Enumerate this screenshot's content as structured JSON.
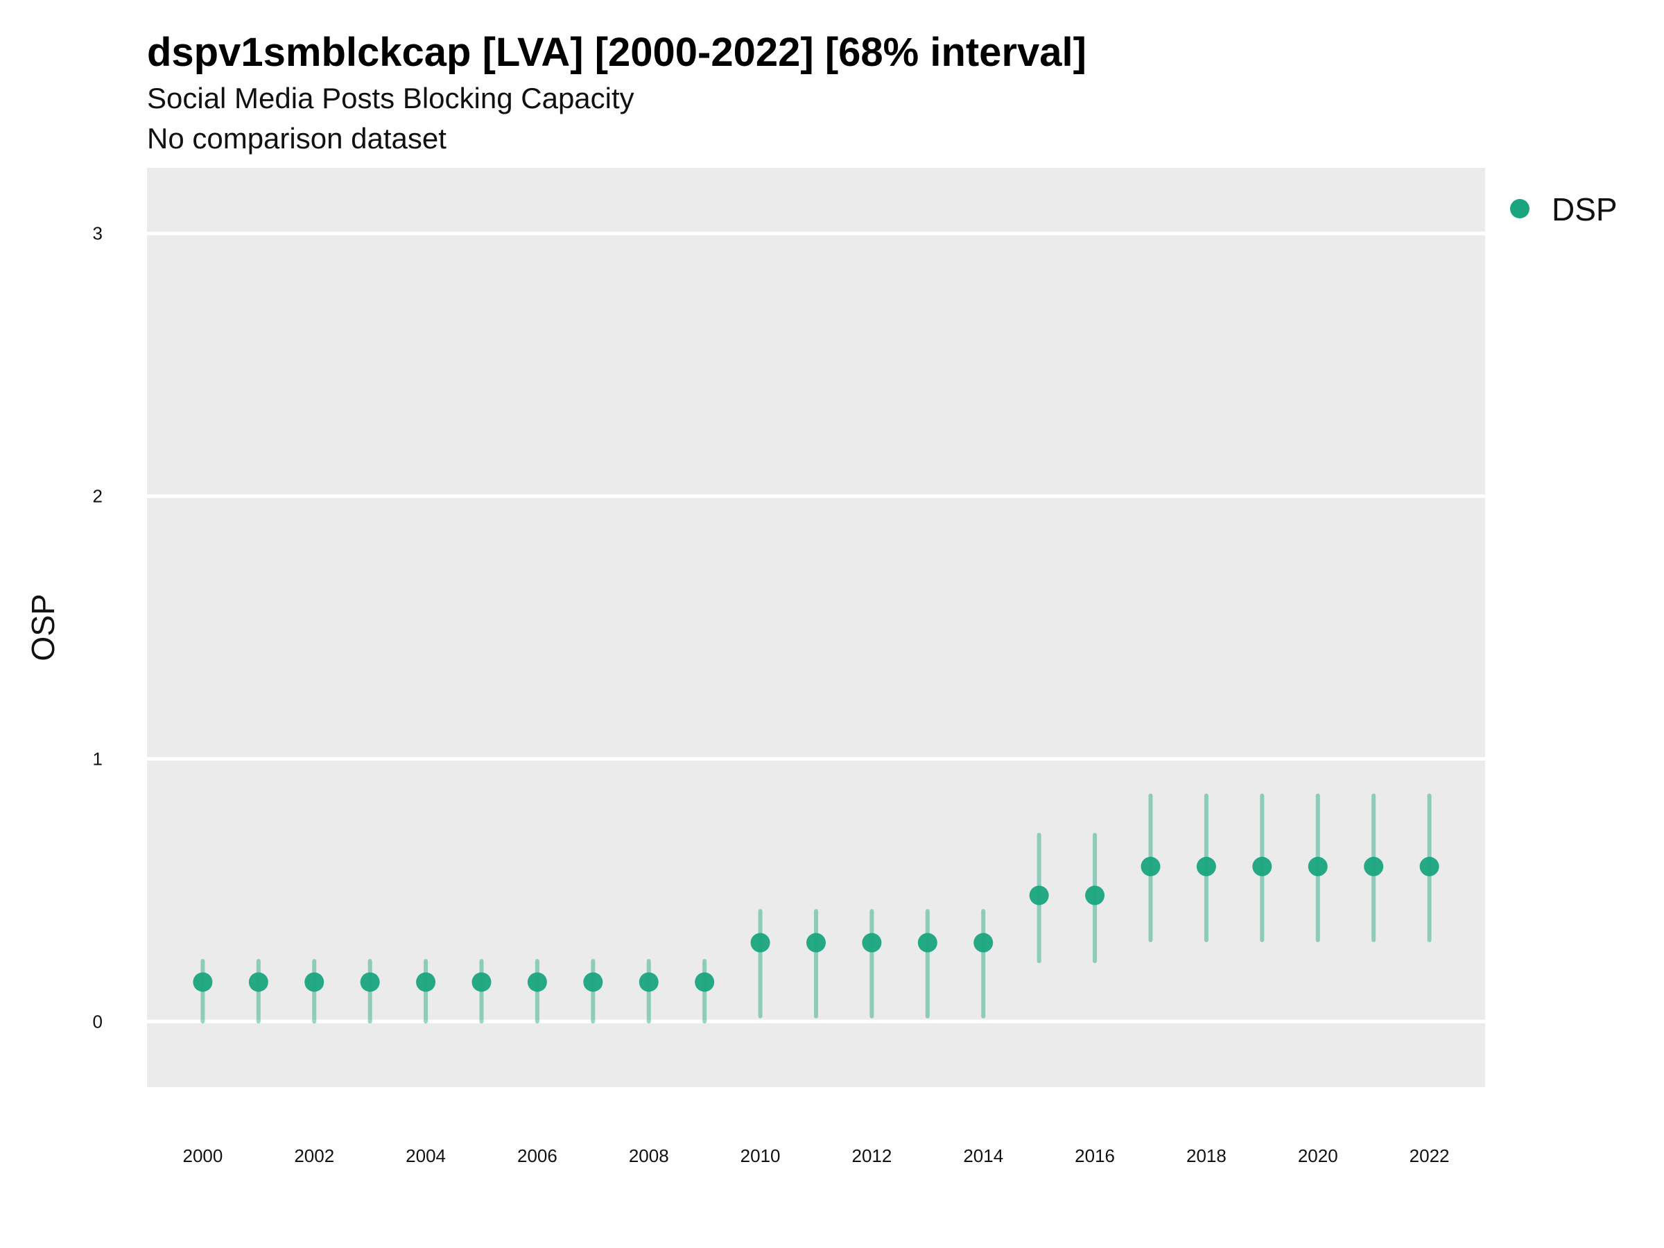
{
  "title": "dspv1smblckcap [LVA] [2000-2022] [68% interval]",
  "subtitle": "Social Media Posts Blocking Capacity",
  "caption": "No comparison dataset",
  "chart_data": {
    "type": "scatter",
    "ylabel": "OSP",
    "xlabel": "",
    "ylim": [
      -0.25,
      3.25
    ],
    "xlim": [
      1999,
      2023
    ],
    "y_ticks": [
      0,
      1,
      2,
      3
    ],
    "x_ticks": [
      2000,
      2002,
      2004,
      2006,
      2008,
      2010,
      2012,
      2014,
      2016,
      2018,
      2020,
      2022
    ],
    "grid": true,
    "legend_position": "right",
    "series": [
      {
        "name": "DSP",
        "color": "#1aa57f",
        "x": [
          2000,
          2001,
          2002,
          2003,
          2004,
          2005,
          2006,
          2007,
          2008,
          2009,
          2010,
          2011,
          2012,
          2013,
          2014,
          2015,
          2016,
          2017,
          2018,
          2019,
          2020,
          2021,
          2022
        ],
        "y": [
          0.15,
          0.15,
          0.15,
          0.15,
          0.15,
          0.15,
          0.15,
          0.15,
          0.15,
          0.15,
          0.3,
          0.3,
          0.3,
          0.3,
          0.3,
          0.48,
          0.48,
          0.59,
          0.59,
          0.59,
          0.59,
          0.59,
          0.59
        ],
        "lower": [
          0.0,
          0.0,
          0.0,
          0.0,
          0.0,
          0.0,
          0.0,
          0.0,
          0.0,
          0.0,
          0.02,
          0.02,
          0.02,
          0.02,
          0.02,
          0.23,
          0.23,
          0.31,
          0.31,
          0.31,
          0.31,
          0.31,
          0.31
        ],
        "upper": [
          0.23,
          0.23,
          0.23,
          0.23,
          0.23,
          0.23,
          0.23,
          0.23,
          0.23,
          0.23,
          0.42,
          0.42,
          0.42,
          0.42,
          0.42,
          0.71,
          0.71,
          0.86,
          0.86,
          0.86,
          0.86,
          0.86,
          0.86
        ]
      }
    ]
  }
}
